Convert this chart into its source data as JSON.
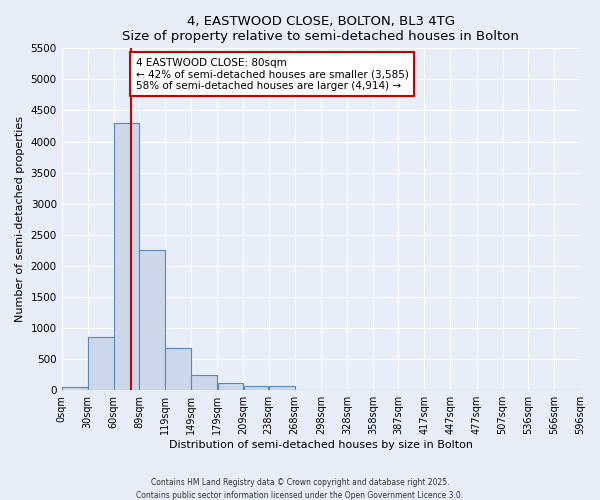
{
  "title": "4, EASTWOOD CLOSE, BOLTON, BL3 4TG",
  "subtitle": "Size of property relative to semi-detached houses in Bolton",
  "xlabel": "Distribution of semi-detached houses by size in Bolton",
  "ylabel": "Number of semi-detached properties",
  "bar_color": "#ccd8ea",
  "bar_edge_color": "#5588bb",
  "bin_edges": [
    0,
    30,
    60,
    89,
    119,
    149,
    179,
    209,
    238,
    268,
    298,
    328,
    358,
    387,
    417,
    447,
    477,
    507,
    536,
    566,
    596
  ],
  "bin_labels": [
    "0sqm",
    "30sqm",
    "60sqm",
    "89sqm",
    "119sqm",
    "149sqm",
    "179sqm",
    "209sqm",
    "238sqm",
    "268sqm",
    "298sqm",
    "328sqm",
    "358sqm",
    "387sqm",
    "417sqm",
    "447sqm",
    "477sqm",
    "507sqm",
    "536sqm",
    "566sqm",
    "596sqm"
  ],
  "bar_heights": [
    50,
    850,
    4300,
    2250,
    680,
    250,
    120,
    70,
    60,
    0,
    0,
    0,
    0,
    0,
    0,
    0,
    0,
    0,
    0,
    0
  ],
  "property_size": 80,
  "property_line_color": "#cc0000",
  "ylim": [
    0,
    5500
  ],
  "yticks": [
    0,
    500,
    1000,
    1500,
    2000,
    2500,
    3000,
    3500,
    4000,
    4500,
    5000,
    5500
  ],
  "annotation_text": "4 EASTWOOD CLOSE: 80sqm\n← 42% of semi-detached houses are smaller (3,585)\n58% of semi-detached houses are larger (4,914) →",
  "annotation_box_color": "#ffffff",
  "annotation_box_edge": "#cc0000",
  "footer1": "Contains HM Land Registry data © Crown copyright and database right 2025.",
  "footer2": "Contains public sector information licensed under the Open Government Licence 3.0.",
  "background_color": "#e8eef8",
  "grid_color": "#ffffff"
}
